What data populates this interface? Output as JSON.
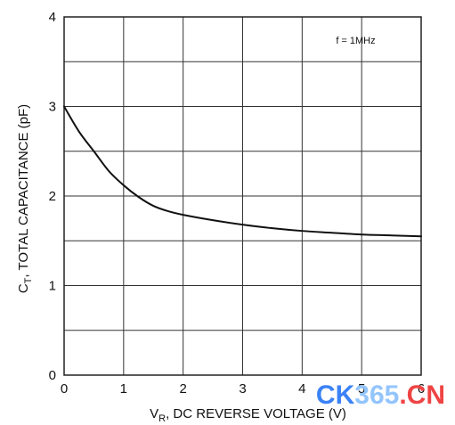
{
  "chart_data": {
    "type": "line",
    "title": "",
    "xlabel": "V",
    "xlabel_sub": "R",
    "xlabel_rest": ", DC REVERSE VOLTAGE (V)",
    "ylabel": "C",
    "ylabel_sub": "T",
    "ylabel_rest": ", TOTAL CAPACITANCE (pF)",
    "annotation": "f = 1MHz",
    "xlim": [
      0,
      6
    ],
    "ylim": [
      0,
      4
    ],
    "grid": true,
    "x_ticks": [
      0,
      1,
      2,
      3,
      4,
      5,
      6
    ],
    "x_tick_labels": [
      "0",
      "1",
      "2",
      "3",
      "4",
      "5",
      "6"
    ],
    "y_ticks": [
      0,
      1,
      2,
      3,
      4
    ],
    "y_tick_labels": [
      "0",
      "1",
      "2",
      "3",
      "4"
    ],
    "x_grid": [
      0,
      1,
      2,
      3,
      4,
      5,
      6
    ],
    "y_grid": [
      0,
      0.5,
      1,
      1.5,
      2,
      2.5,
      3,
      3.5,
      4
    ],
    "series": [
      {
        "color": "#111111",
        "x": [
          0,
          0.25,
          0.5,
          0.75,
          1.0,
          1.25,
          1.5,
          1.75,
          2.0,
          2.5,
          3.0,
          3.5,
          4.0,
          4.5,
          5.0,
          5.5,
          6.0
        ],
        "y": [
          3.0,
          2.72,
          2.5,
          2.28,
          2.12,
          1.99,
          1.89,
          1.83,
          1.79,
          1.73,
          1.68,
          1.64,
          1.61,
          1.59,
          1.57,
          1.56,
          1.55
        ]
      }
    ]
  },
  "watermark": {
    "part1": "CK",
    "part2": "365",
    "part3": ".CN",
    "color1": "#3b82f6",
    "color2": "#93c5fd",
    "color3": "#ef4444"
  }
}
